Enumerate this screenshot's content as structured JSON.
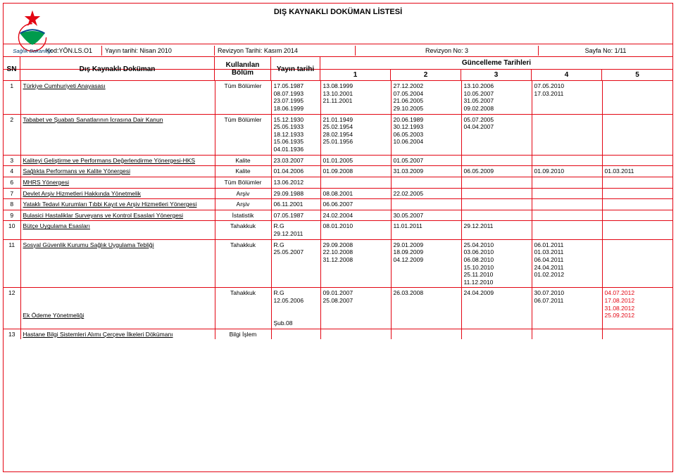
{
  "title": "DIŞ KAYNAKLI DOKÜMAN LİSTESİ",
  "meta": {
    "kod": "Kod:YÖN.LS.O1",
    "yayin": "Yayın tarihi: Nisan 2010",
    "revt": "Revizyon Tarihi: Kasım 2014",
    "revn": "Revizyon No: 3",
    "sayfa": "Sayfa No: 1/11"
  },
  "head": {
    "sn": "SN",
    "dok": "Dış Kaynaklı Doküman",
    "bol": "Kullanılan Bölüm",
    "yt": "Yayın tarihi",
    "gt": "Güncelleme Tarihleri",
    "g1": "1",
    "g2": "2",
    "g3": "3",
    "g4": "4",
    "g5": "5"
  },
  "rows": [
    {
      "sn": "1",
      "dok": "Türkiye Cumhuriyeti Anayasası",
      "bol": "Tüm Bölümler",
      "yt": "17.05.1987\n08.07.1993\n23.07.1995\n18.06.1999",
      "g1": "13.08.1999\n13.10.2001\n21.11.2001",
      "g2": "27.12.2002\n07.05.2004\n21.06.2005\n29.10.2005",
      "g3": "13.10.2006\n10.05.2007\n31.05.2007\n09.02.2008",
      "g4": "07.05.2010\n17.03.2011",
      "g5": ""
    },
    {
      "sn": "2",
      "dok": "Tababet ve Şuabatı Sanatlarının İcrasına Dair Kanun",
      "bol": "Tüm Bölümler",
      "yt": "15.12.1930\n25.05.1933\n18.12.1933\n15.06.1935\n04.01.1936",
      "g1": "21.01.1949\n25.02.1954\n28.02.1954\n25.01.1956",
      "g2": "20.06.1989\n30.12.1993\n06.05.2003\n10.06.2004",
      "g3": "05.07.2005\n04.04.2007",
      "g4": "",
      "g5": ""
    },
    {
      "sn": "3",
      "dok": "Kaliteyi Geliştirme ve Performans Değerlendirme Yönergesi-HKS",
      "bol": "Kalite",
      "yt": "23.03.2007",
      "g1": "01.01.2005",
      "g2": "01.05.2007",
      "g3": "",
      "g4": "",
      "g5": ""
    },
    {
      "sn": "4",
      "dok": "Sağlıkta Performans ve Kalite Yönergesi",
      "bol": "Kalite",
      "yt": "01.04.2006",
      "g1": "01.09.2008",
      "g2": "31.03.2009",
      "g3": "06.05.2009",
      "g4": "01.09.2010",
      "g5": "01.03.2011"
    },
    {
      "sn": "6",
      "dok": "MHRS Yönergesi",
      "bol": "Tüm Bölümler",
      "yt": "13.06.2012",
      "g1": "",
      "g2": "",
      "g3": "",
      "g4": "",
      "g5": ""
    },
    {
      "sn": "7",
      "dok": "Devlet Arşiv Hizmetleri Hakkında Yönetmelik",
      "bol": "Arşiv",
      "yt": "29.09.1988",
      "g1": "08.08.2001",
      "g2": "22.02.2005",
      "g3": "",
      "g4": "",
      "g5": ""
    },
    {
      "sn": "8",
      "dok": "Yataklı Tedavi Kurumları Tıbbi Kayıt ve Arşiv Hizmetleri Yönergesi",
      "bol": "Arşiv",
      "yt": "06.11.2001",
      "g1": "06.06.2007",
      "g2": "",
      "g3": "",
      "g4": "",
      "g5": ""
    },
    {
      "sn": "9",
      "dok": "Bulasici Hastaliklar Surveyans ve Kontrol Esaslari Yönergesi",
      "bol": "İstatistik",
      "yt": "07.05.1987",
      "g1": "24.02.2004",
      "g2": "30.05.2007",
      "g3": "",
      "g4": "",
      "g5": ""
    },
    {
      "sn": "10",
      "dok": "Bütçe Uygulama Esasları",
      "bol": "Tahakkuk",
      "yt": "R.G\n29.12.2011",
      "g1": "08.01.2010",
      "g2": "11.01.2011",
      "g3": "29.12.2011",
      "g4": "",
      "g5": ""
    },
    {
      "sn": "11",
      "dok": "Sosyal Güvenlik Kurumu Sağlık Uygulama Tebliği",
      "bol": "Tahakkuk",
      "yt": "R.G\n25.05.2007",
      "g1": "29.09.2008\n22.10.2008\n31.12.2008",
      "g2": "29.01.2009\n18.09.2009\n04.12.2009",
      "g3": "25.04.2010\n03.06.2010\n06.08.2010\n15.10.2010\n25.11.2010\n11.12.2010",
      "g4": "06.01.2011\n01.03.2011\n06.04.2011\n24.04.2011\n01.02.2012",
      "g5": ""
    },
    {
      "sn": "12",
      "dok": "\n\n\nEk Ödeme Yönetmeliği",
      "bol": "Tahakkuk",
      "yt": "R.G\n12.05.2006\n\n\nŞub.08",
      "g1": "09.01.2007\n25.08.2007",
      "g2": "26.03.2008",
      "g3": "24.04.2009",
      "g4": "30.07.2010\n06.07.2011",
      "g5": "04.07.2012\n17.08.2012\n31.08.2012\n25.09.2012"
    },
    {
      "sn": "13",
      "dok": "Hastane Bilgi Sistemleri Alımı Çerçeve İlkeleri Dökümanı",
      "bol": "Bilgi İşlem",
      "yt": "",
      "g1": "",
      "g2": "",
      "g3": "",
      "g4": "",
      "g5": ""
    }
  ],
  "g5_12_color": "#e30613"
}
